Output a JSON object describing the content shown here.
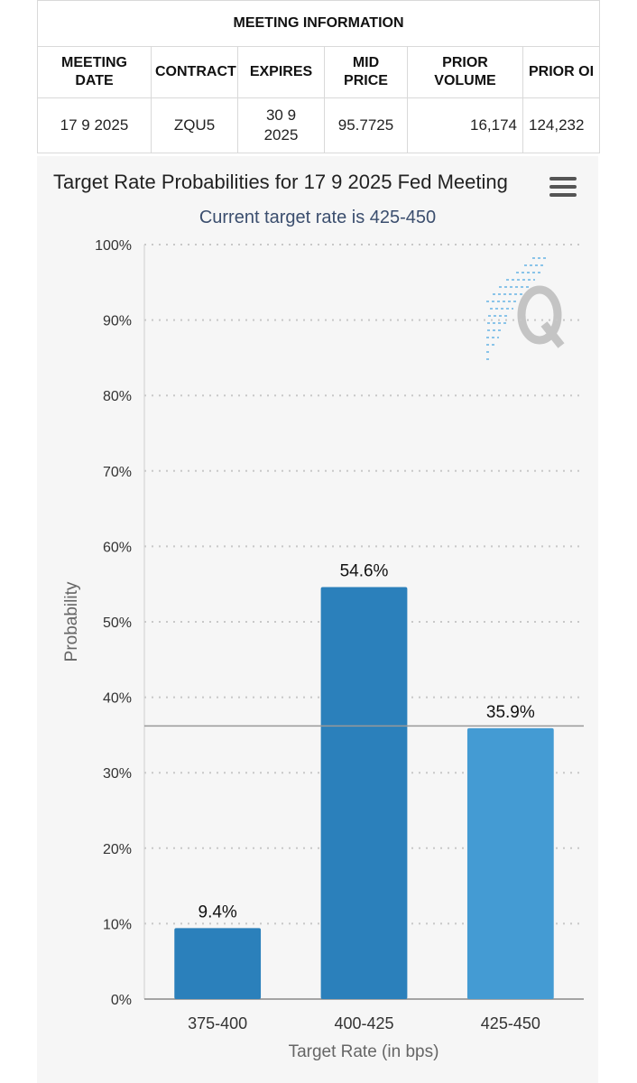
{
  "meeting_info": {
    "title": "MEETING INFORMATION",
    "headers": {
      "meeting_date_1": "MEETING",
      "meeting_date_2": "DATE",
      "contract": "CONTRACT",
      "expires": "EXPIRES",
      "mid_price_1": "MID",
      "mid_price_2": "PRICE",
      "prior_volume_1": "PRIOR",
      "prior_volume_2": "VOLUME",
      "prior_oi": "PRIOR OI"
    },
    "row": {
      "meeting_date": "17 9 2025",
      "contract": "ZQU5",
      "expires_1": "30 9",
      "expires_2": "2025",
      "mid_price": "95.7725",
      "prior_volume": "16,174",
      "prior_oi": "124,232"
    }
  },
  "chart_data": {
    "type": "bar",
    "title": "Target Rate Probabilities for 17 9 2025 Fed Meeting",
    "subtitle": "Current target rate is 425-450",
    "xlabel": "Target Rate (in bps)",
    "ylabel": "Probability",
    "categories": [
      "375-400",
      "400-425",
      "425-450"
    ],
    "values": [
      9.4,
      54.6,
      35.9
    ],
    "data_labels": [
      "9.4%",
      "54.6%",
      "35.9%"
    ],
    "ylim": [
      0,
      100
    ],
    "yticks": [
      0,
      10,
      20,
      30,
      40,
      50,
      60,
      70,
      80,
      90,
      100
    ],
    "ytick_labels": [
      "0%",
      "10%",
      "20%",
      "30%",
      "40%",
      "50%",
      "60%",
      "70%",
      "80%",
      "90%",
      "100%"
    ],
    "reference_line": 36.2,
    "grid": true,
    "legend": "none",
    "bar_colors": [
      "#2b80bb",
      "#2b80bb",
      "#449bd3"
    ]
  },
  "colors": {
    "grid": "#c8c8c8",
    "axis": "#888888",
    "reference_line": "#999999",
    "watermark": "#bfbfbf",
    "watermark_accent": "#7fbfe8"
  },
  "icons": {
    "menu": "hamburger-menu-icon",
    "watermark": "quikstrike-logo"
  }
}
